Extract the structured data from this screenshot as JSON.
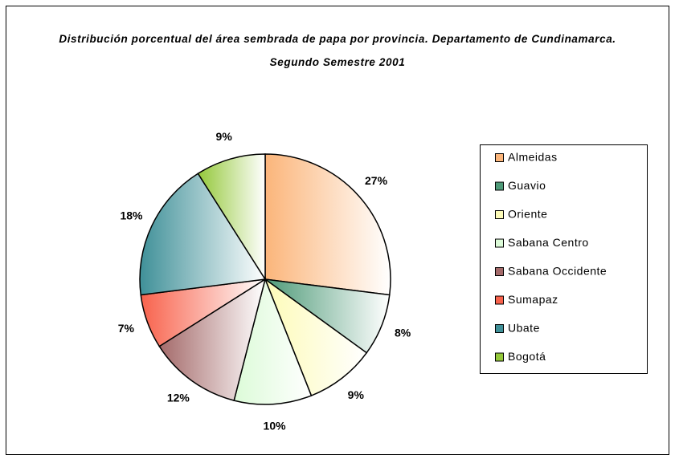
{
  "chart_data": {
    "type": "pie",
    "title": "Distribución porcentual del área sembrada de papa por provincia. Departamento de Cundinamarca. Segundo Semestre 2001",
    "categories": [
      "Almeidas",
      "Guavio",
      "Oriente",
      "Sabana Centro",
      "Sabana Occidente",
      "Sumapaz",
      "Ubate",
      "Bogotá"
    ],
    "values": [
      27,
      8,
      9,
      10,
      12,
      7,
      18,
      9
    ],
    "value_labels": [
      "27%",
      "8%",
      "9%",
      "10%",
      "12%",
      "7%",
      "18%",
      "9%"
    ],
    "colors": [
      "#fbb57a",
      "#4e9a78",
      "#fdfbb8",
      "#dcfbd8",
      "#a46a6a",
      "#f8624c",
      "#3f9098",
      "#94c83a"
    ],
    "legend": "right"
  }
}
